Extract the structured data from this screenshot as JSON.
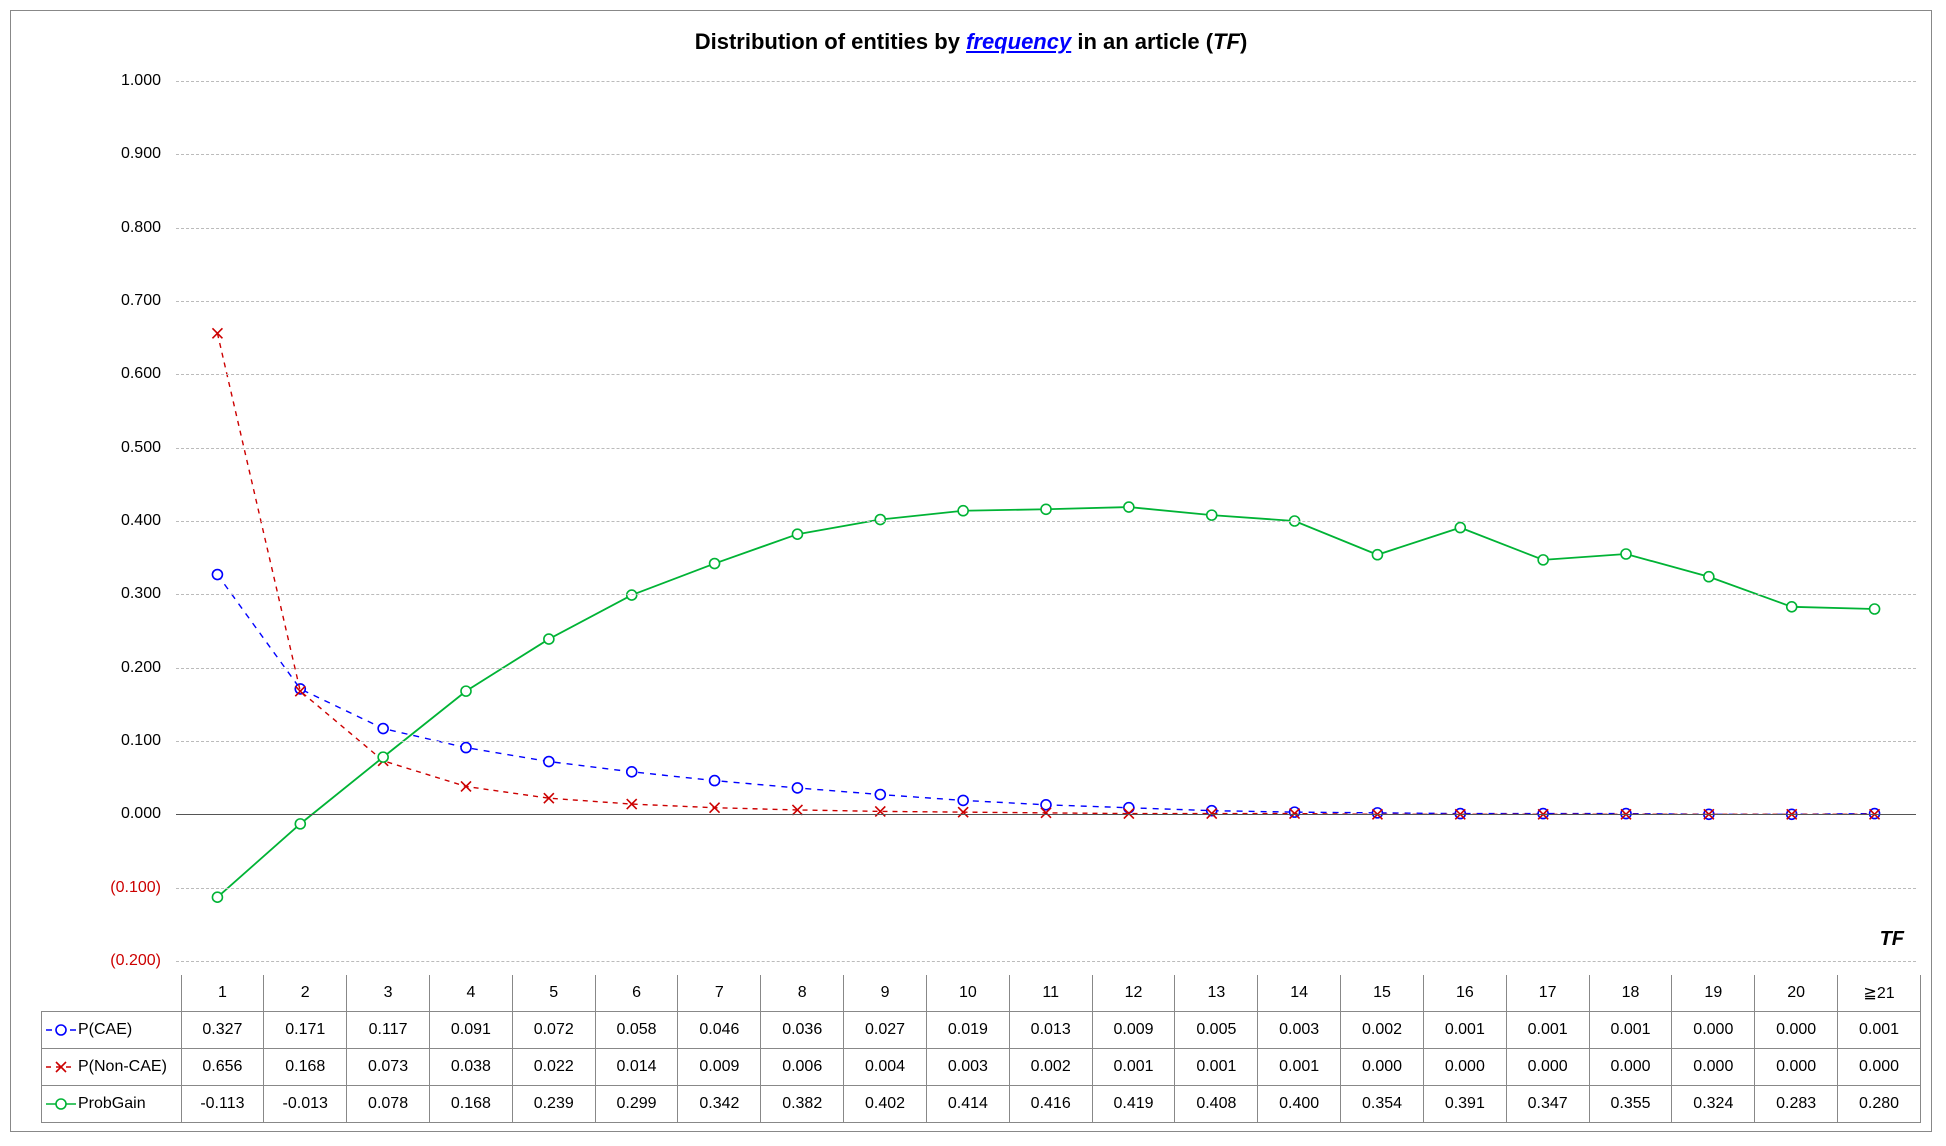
{
  "chart": {
    "title_prefix": "Distribution of entities by ",
    "title_freq": "frequency",
    "title_mid": " in an article (",
    "title_tf": "TF",
    "title_suffix": ")",
    "title_fontsize": 22,
    "axis_label": "TF",
    "background_color": "#ffffff",
    "grid_color": "#bbbbbb",
    "ylim": [
      -0.2,
      1.0
    ],
    "ytick_step": 0.1,
    "yticks": [
      "1.000",
      "0.900",
      "0.800",
      "0.700",
      "0.600",
      "0.500",
      "0.400",
      "0.300",
      "0.200",
      "0.100",
      "0.000",
      "(0.100)",
      "(0.200)"
    ],
    "ytick_values": [
      1.0,
      0.9,
      0.8,
      0.7,
      0.6,
      0.5,
      0.4,
      0.3,
      0.2,
      0.1,
      0.0,
      -0.1,
      -0.2
    ],
    "categories": [
      "1",
      "2",
      "3",
      "4",
      "5",
      "6",
      "7",
      "8",
      "9",
      "10",
      "11",
      "12",
      "13",
      "14",
      "15",
      "16",
      "17",
      "18",
      "19",
      "20",
      "≧21"
    ],
    "series": [
      {
        "name": "P(CAE)",
        "color": "#0000ff",
        "dash": "6,6",
        "marker": "circle",
        "line_width": 1.4,
        "values": [
          0.327,
          0.171,
          0.117,
          0.091,
          0.072,
          0.058,
          0.046,
          0.036,
          0.027,
          0.019,
          0.013,
          0.009,
          0.005,
          0.003,
          0.002,
          0.001,
          0.001,
          0.001,
          0.0,
          0.0,
          0.001
        ],
        "display": [
          "0.327",
          "0.171",
          "0.117",
          "0.091",
          "0.072",
          "0.058",
          "0.046",
          "0.036",
          "0.027",
          "0.019",
          "0.013",
          "0.009",
          "0.005",
          "0.003",
          "0.002",
          "0.001",
          "0.001",
          "0.001",
          "0.000",
          "0.000",
          "0.001"
        ]
      },
      {
        "name": "P(Non-CAE)",
        "color": "#cc0000",
        "dash": "5,5",
        "marker": "x",
        "line_width": 1.4,
        "values": [
          0.656,
          0.168,
          0.073,
          0.038,
          0.022,
          0.014,
          0.009,
          0.006,
          0.004,
          0.003,
          0.002,
          0.001,
          0.001,
          0.001,
          0.0,
          0.0,
          0.0,
          0.0,
          0.0,
          0.0,
          0.0
        ],
        "display": [
          "0.656",
          "0.168",
          "0.073",
          "0.038",
          "0.022",
          "0.014",
          "0.009",
          "0.006",
          "0.004",
          "0.003",
          "0.002",
          "0.001",
          "0.001",
          "0.001",
          "0.000",
          "0.000",
          "0.000",
          "0.000",
          "0.000",
          "0.000",
          "0.000"
        ]
      },
      {
        "name": "ProbGain",
        "color": "#00b335",
        "dash": "",
        "marker": "circle",
        "line_width": 1.8,
        "values": [
          -0.113,
          -0.013,
          0.078,
          0.168,
          0.239,
          0.299,
          0.342,
          0.382,
          0.402,
          0.414,
          0.416,
          0.419,
          0.408,
          0.4,
          0.354,
          0.391,
          0.347,
          0.355,
          0.324,
          0.283,
          0.28
        ],
        "display": [
          "-0.113",
          "-0.013",
          "0.078",
          "0.168",
          "0.239",
          "0.299",
          "0.342",
          "0.382",
          "0.402",
          "0.414",
          "0.416",
          "0.419",
          "0.408",
          "0.400",
          "0.354",
          "0.391",
          "0.347",
          "0.355",
          "0.324",
          "0.283",
          "0.280"
        ]
      }
    ]
  }
}
